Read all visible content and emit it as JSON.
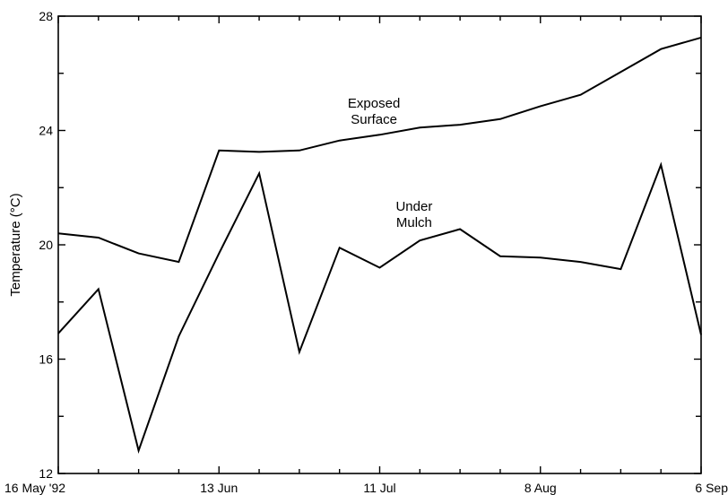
{
  "chart_data": {
    "type": "line",
    "title": "",
    "xlabel": "",
    "ylabel": "Temperature (°C)",
    "ylim": [
      12,
      28
    ],
    "y_ticks": [
      12,
      16,
      20,
      24,
      28
    ],
    "y_minor_ticks": [
      14,
      18,
      22,
      26
    ],
    "x_start": "16 May '92",
    "x_end": "6 Sep",
    "x_tick_labels": [
      {
        "label": "16 May '92",
        "x": 0
      },
      {
        "label": "13 Jun",
        "x": 28
      },
      {
        "label": "11 Jul",
        "x": 56
      },
      {
        "label": "8 Aug",
        "x": 84
      },
      {
        "label": "6 Sep",
        "x": 112
      }
    ],
    "x_minor_ticks": [
      7,
      14,
      21,
      35,
      42,
      49,
      63,
      70,
      77,
      91,
      98,
      105
    ],
    "xlim": [
      0,
      112
    ],
    "grid": false,
    "series": [
      {
        "name": "Exposed Surface",
        "label_lines": [
          "Exposed",
          "Surface"
        ],
        "label_at": {
          "x": 55,
          "y": 24.8
        },
        "x": [
          0,
          7,
          14,
          21,
          28,
          35,
          42,
          49,
          56,
          63,
          70,
          77,
          84,
          91,
          98,
          105,
          112
        ],
        "values": [
          20.4,
          20.25,
          19.7,
          19.4,
          23.3,
          23.25,
          23.3,
          23.65,
          23.85,
          24.1,
          24.2,
          24.4,
          24.85,
          25.25,
          26.05,
          26.85,
          27.25
        ]
      },
      {
        "name": "Under Mulch",
        "label_lines": [
          "Under",
          "Mulch"
        ],
        "label_at": {
          "x": 62,
          "y": 21.2
        },
        "x": [
          0,
          7,
          14,
          21,
          28,
          35,
          42,
          49,
          56,
          63,
          70,
          77,
          84,
          91,
          98,
          105,
          112
        ],
        "values": [
          16.9,
          18.45,
          12.8,
          16.8,
          19.7,
          22.5,
          16.25,
          19.9,
          19.2,
          20.15,
          20.55,
          19.6,
          19.55,
          19.4,
          19.15,
          22.8,
          16.85
        ]
      }
    ]
  }
}
